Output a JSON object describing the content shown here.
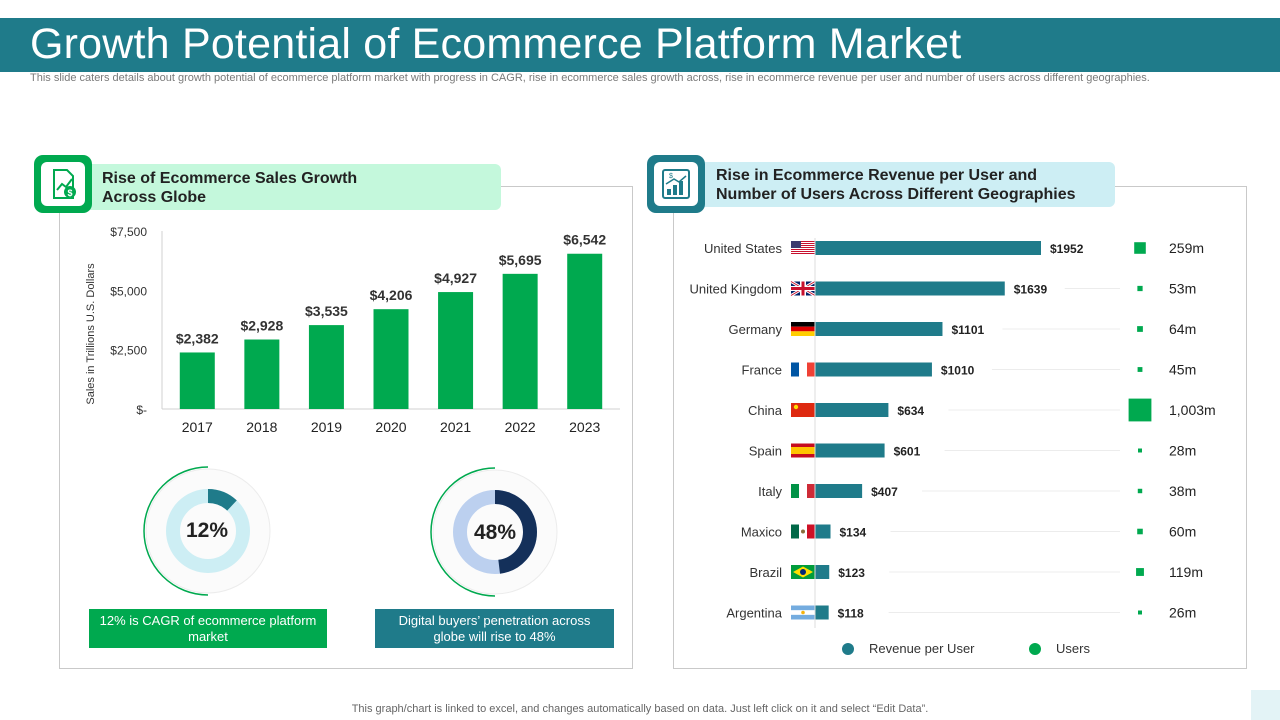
{
  "header": {
    "title": "Growth Potential of Ecommerce Platform Market",
    "subtitle": "This slide caters details about growth potential of ecommerce platform market with progress in CAGR, rise in ecommerce sales growth across, rise in ecommerce revenue per user and number of users across different geographies."
  },
  "left_panel": {
    "heading_line1": "Rise of Ecommerce Sales Growth",
    "heading_line2": "Across Globe",
    "icon": "sales-growth-icon"
  },
  "right_panel": {
    "heading_line1": "Rise in Ecommerce Revenue per User and",
    "heading_line2": "Number of Users Across Different Geographies",
    "icon": "revenue-chart-icon"
  },
  "donuts": [
    {
      "label": "12%",
      "value": 12,
      "caption": "12% is CAGR  of ecommerce platform market",
      "color": "#1f7b8a",
      "track": "#cdeef4"
    },
    {
      "label": "48%",
      "value": 48,
      "caption": "Digital buyers’ penetration across globe will rise to 48%",
      "color": "#14305a",
      "track": "#bcd0ef"
    }
  ],
  "legend": {
    "revenue_label": "Revenue  per User",
    "users_label": "Users"
  },
  "colors": {
    "accent": "#1f7b8a",
    "green": "#00a94f",
    "navy": "#14305a"
  },
  "footer": "This graph/chart is linked to excel,  and changes automatically based on data. Just left click on it and select “Edit Data”.",
  "chart_data": [
    {
      "type": "bar",
      "categories": [
        "2017",
        "2018",
        "2019",
        "2020",
        "2021",
        "2022",
        "2023"
      ],
      "values": [
        2382,
        2928,
        3535,
        4206,
        4927,
        5695,
        6542
      ],
      "value_labels": [
        "$2,382",
        "$2,928",
        "$3,535",
        "$4,206",
        "$4,927",
        "$5,695",
        "$6,542"
      ],
      "ylabel": "Sales in Trillions U.S. Dollars",
      "yticks": [
        0,
        2500,
        5000,
        7500
      ],
      "ytick_labels": [
        "$-",
        "$2,500",
        "$5,000",
        "$7,500"
      ],
      "ylim": [
        0,
        7500
      ],
      "color": "#00a94f"
    },
    {
      "type": "bar",
      "orientation": "horizontal",
      "categories": [
        "United States",
        "United Kingdom",
        "Germany",
        "France",
        "China",
        "Spain",
        "Italy",
        "Maxico",
        "Brazil",
        "Argentina"
      ],
      "series": [
        {
          "name": "Revenue  per User",
          "values": [
            1952,
            1639,
            1101,
            1010,
            634,
            601,
            407,
            134,
            123,
            118
          ],
          "labels": [
            "$1952",
            "$1639",
            "$1101",
            "$1010",
            "$634",
            "$601",
            "$407",
            "$134",
            "$123",
            "$118"
          ],
          "color": "#1f7b8a"
        },
        {
          "name": "Users",
          "values": [
            259,
            53,
            64,
            45,
            1003,
            28,
            38,
            60,
            119,
            26
          ],
          "labels": [
            "259m",
            "53m",
            "64m",
            "45m",
            "1,003m",
            "28m",
            "38m",
            "60m",
            "119m",
            "26m"
          ],
          "color": "#00a94f"
        }
      ],
      "flags": [
        "us",
        "uk",
        "de",
        "fr",
        "cn",
        "es",
        "it",
        "mx",
        "br",
        "ar"
      ]
    }
  ]
}
